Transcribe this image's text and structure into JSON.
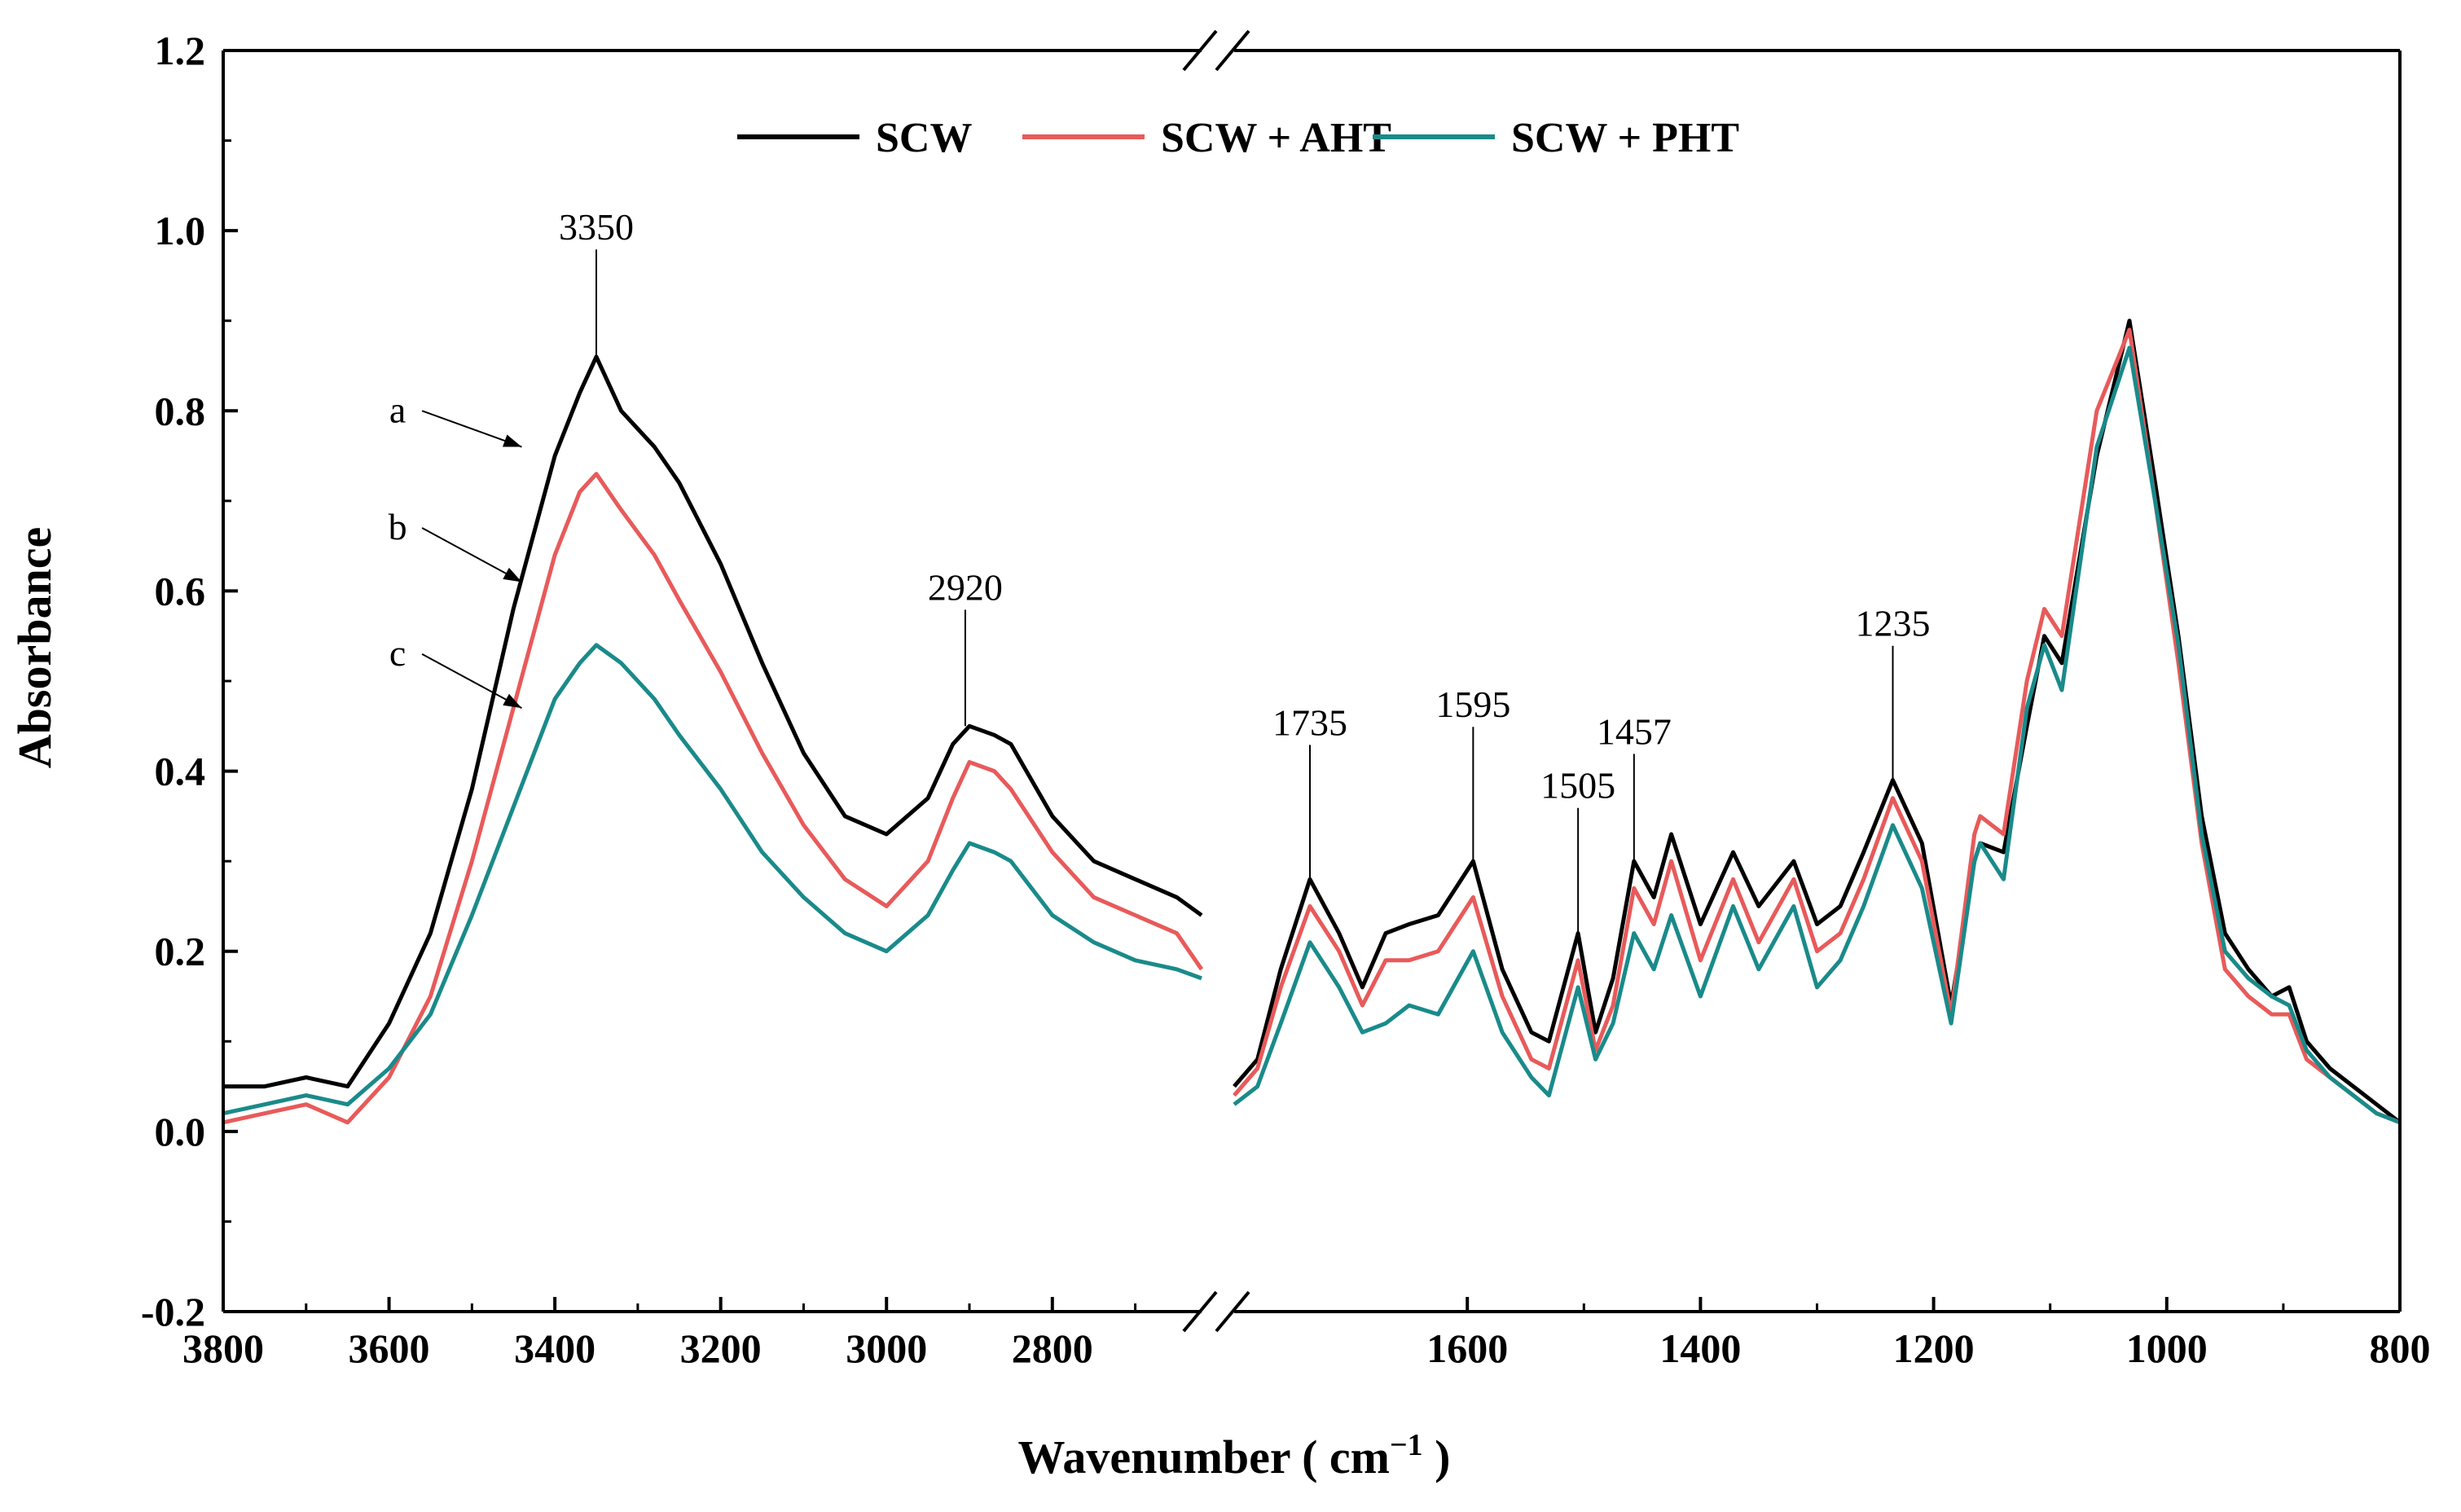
{
  "chart_data": {
    "type": "line",
    "title": "",
    "xlabel": "Wavenumber ( cm",
    "xlabel_sup": "−1",
    "xlabel_end": " )",
    "ylabel": "Absorbance",
    "ylim": [
      -0.2,
      1.2
    ],
    "y_ticks": [
      -0.2,
      0.0,
      0.2,
      0.4,
      0.6,
      0.8,
      1.0,
      1.2
    ],
    "y_tick_labels": [
      "-0.2",
      "0.0",
      "0.2",
      "0.4",
      "0.6",
      "0.8",
      "1.0",
      "1.2"
    ],
    "x_axis_reversed": true,
    "x_break": true,
    "x_segments": [
      {
        "range": [
          3800,
          2620
        ],
        "ticks": [
          3800,
          3600,
          3400,
          3200,
          3000,
          2800
        ],
        "tick_labels": [
          "3800",
          "3600",
          "3400",
          "3200",
          "3000",
          "2800"
        ]
      },
      {
        "range": [
          1800,
          800
        ],
        "ticks": [
          1600,
          1400,
          1200,
          1000,
          800
        ],
        "tick_labels": [
          "1600",
          "1400",
          "1200",
          "1000",
          "800"
        ]
      }
    ],
    "legend": {
      "position": "top-center",
      "entries": [
        "SCW",
        "SCW + AHT",
        "SCW + PHT"
      ]
    },
    "series": [
      {
        "name": "SCW",
        "color": "#000000",
        "x": [
          3800,
          3750,
          3700,
          3650,
          3600,
          3550,
          3500,
          3450,
          3400,
          3370,
          3350,
          3320,
          3280,
          3250,
          3200,
          3150,
          3100,
          3050,
          3000,
          2950,
          2920,
          2900,
          2870,
          2850,
          2800,
          2750,
          2700,
          2650,
          2620,
          1800,
          1780,
          1760,
          1735,
          1710,
          1690,
          1670,
          1650,
          1625,
          1595,
          1570,
          1545,
          1530,
          1505,
          1490,
          1475,
          1457,
          1440,
          1425,
          1400,
          1372,
          1350,
          1320,
          1300,
          1280,
          1260,
          1235,
          1210,
          1185,
          1165,
          1160,
          1140,
          1120,
          1105,
          1090,
          1060,
          1032,
          1010,
          990,
          970,
          950,
          930,
          910,
          895,
          880,
          860,
          840,
          820,
          800
        ],
        "values": [
          0.05,
          0.05,
          0.06,
          0.05,
          0.12,
          0.22,
          0.38,
          0.58,
          0.75,
          0.82,
          0.86,
          0.8,
          0.76,
          0.72,
          0.63,
          0.52,
          0.42,
          0.35,
          0.33,
          0.37,
          0.43,
          0.45,
          0.44,
          0.43,
          0.35,
          0.3,
          0.28,
          0.26,
          0.24,
          0.05,
          0.08,
          0.18,
          0.28,
          0.22,
          0.16,
          0.22,
          0.23,
          0.24,
          0.3,
          0.18,
          0.11,
          0.1,
          0.22,
          0.11,
          0.17,
          0.3,
          0.26,
          0.33,
          0.23,
          0.31,
          0.25,
          0.3,
          0.23,
          0.25,
          0.31,
          0.39,
          0.32,
          0.14,
          0.3,
          0.32,
          0.31,
          0.45,
          0.55,
          0.52,
          0.75,
          0.9,
          0.72,
          0.55,
          0.35,
          0.22,
          0.18,
          0.15,
          0.16,
          0.1,
          0.07,
          0.05,
          0.03,
          0.01
        ]
      },
      {
        "name": "SCW + AHT",
        "color": "#e85a5a",
        "x": [
          3800,
          3750,
          3700,
          3650,
          3600,
          3550,
          3500,
          3450,
          3400,
          3370,
          3350,
          3320,
          3280,
          3250,
          3200,
          3150,
          3100,
          3050,
          3000,
          2950,
          2920,
          2900,
          2870,
          2850,
          2800,
          2750,
          2700,
          2650,
          2620,
          1800,
          1780,
          1760,
          1735,
          1710,
          1690,
          1670,
          1650,
          1625,
          1595,
          1570,
          1545,
          1530,
          1505,
          1490,
          1475,
          1457,
          1440,
          1425,
          1400,
          1372,
          1350,
          1320,
          1300,
          1280,
          1260,
          1235,
          1210,
          1185,
          1165,
          1160,
          1140,
          1120,
          1105,
          1090,
          1060,
          1032,
          1010,
          990,
          970,
          950,
          930,
          910,
          895,
          880,
          860,
          840,
          820,
          800
        ],
        "values": [
          0.01,
          0.02,
          0.03,
          0.01,
          0.06,
          0.15,
          0.3,
          0.47,
          0.64,
          0.71,
          0.73,
          0.69,
          0.64,
          0.59,
          0.51,
          0.42,
          0.34,
          0.28,
          0.25,
          0.3,
          0.37,
          0.41,
          0.4,
          0.38,
          0.31,
          0.26,
          0.24,
          0.22,
          0.18,
          0.04,
          0.07,
          0.16,
          0.25,
          0.2,
          0.14,
          0.19,
          0.19,
          0.2,
          0.26,
          0.15,
          0.08,
          0.07,
          0.19,
          0.09,
          0.14,
          0.27,
          0.23,
          0.3,
          0.19,
          0.28,
          0.21,
          0.28,
          0.2,
          0.22,
          0.28,
          0.37,
          0.3,
          0.13,
          0.33,
          0.35,
          0.33,
          0.5,
          0.58,
          0.55,
          0.8,
          0.89,
          0.7,
          0.52,
          0.32,
          0.18,
          0.15,
          0.13,
          0.13,
          0.08,
          0.06,
          0.04,
          0.02,
          0.01
        ]
      },
      {
        "name": "SCW + PHT",
        "color": "#1a8a8a",
        "x": [
          3800,
          3750,
          3700,
          3650,
          3600,
          3550,
          3500,
          3450,
          3400,
          3370,
          3350,
          3320,
          3280,
          3250,
          3200,
          3150,
          3100,
          3050,
          3000,
          2950,
          2920,
          2900,
          2870,
          2850,
          2800,
          2750,
          2700,
          2650,
          2620,
          1800,
          1780,
          1760,
          1735,
          1710,
          1690,
          1670,
          1650,
          1625,
          1595,
          1570,
          1545,
          1530,
          1505,
          1490,
          1475,
          1457,
          1440,
          1425,
          1400,
          1372,
          1350,
          1320,
          1300,
          1280,
          1260,
          1235,
          1210,
          1185,
          1165,
          1160,
          1140,
          1120,
          1105,
          1090,
          1060,
          1032,
          1010,
          990,
          970,
          950,
          930,
          910,
          895,
          880,
          860,
          840,
          820,
          800
        ],
        "values": [
          0.02,
          0.03,
          0.04,
          0.03,
          0.07,
          0.13,
          0.24,
          0.36,
          0.48,
          0.52,
          0.54,
          0.52,
          0.48,
          0.44,
          0.38,
          0.31,
          0.26,
          0.22,
          0.2,
          0.24,
          0.29,
          0.32,
          0.31,
          0.3,
          0.24,
          0.21,
          0.19,
          0.18,
          0.17,
          0.03,
          0.05,
          0.12,
          0.21,
          0.16,
          0.11,
          0.12,
          0.14,
          0.13,
          0.2,
          0.11,
          0.06,
          0.04,
          0.16,
          0.08,
          0.12,
          0.22,
          0.18,
          0.24,
          0.15,
          0.25,
          0.18,
          0.25,
          0.16,
          0.19,
          0.25,
          0.34,
          0.27,
          0.12,
          0.3,
          0.32,
          0.28,
          0.47,
          0.54,
          0.49,
          0.76,
          0.87,
          0.7,
          0.54,
          0.33,
          0.2,
          0.17,
          0.15,
          0.14,
          0.09,
          0.06,
          0.04,
          0.02,
          0.01
        ]
      }
    ],
    "annotations": [
      {
        "text": "3350",
        "x": 3350,
        "y_tip": 0.86,
        "y_text": 0.99
      },
      {
        "text": "2920",
        "x": 2905,
        "y_tip": 0.45,
        "y_text": 0.59
      },
      {
        "text": "1735",
        "x": 1735,
        "y_tip": 0.28,
        "y_text": 0.44
      },
      {
        "text": "1595",
        "x": 1595,
        "y_tip": 0.3,
        "y_text": 0.46
      },
      {
        "text": "1505",
        "x": 1505,
        "y_tip": 0.22,
        "y_text": 0.37
      },
      {
        "text": "1457",
        "x": 1457,
        "y_tip": 0.3,
        "y_text": 0.43
      },
      {
        "text": "1235",
        "x": 1235,
        "y_tip": 0.39,
        "y_text": 0.55
      }
    ],
    "curve_labels": [
      {
        "text": "a",
        "series": 0,
        "x_text": 3570,
        "y_text": 0.8,
        "x_tip": 3440,
        "y_tip": 0.76
      },
      {
        "text": "b",
        "series": 1,
        "x_text": 3570,
        "y_text": 0.67,
        "x_tip": 3440,
        "y_tip": 0.61
      },
      {
        "text": "c",
        "series": 2,
        "x_text": 3570,
        "y_text": 0.53,
        "x_tip": 3440,
        "y_tip": 0.47
      }
    ]
  }
}
